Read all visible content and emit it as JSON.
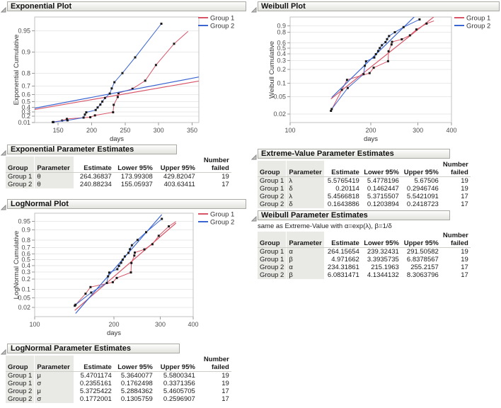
{
  "accent_colors": {
    "group1": "#d85568",
    "group2": "#3b65d0",
    "marker": "#1a1a1a"
  },
  "sections": {
    "exponential_plot": {
      "title": "Exponential Plot"
    },
    "exponential_estimates": {
      "title": "Exponential Parameter Estimates"
    },
    "lognormal_plot": {
      "title": "LogNormal Plot"
    },
    "lognormal_estimates": {
      "title": "LogNormal Parameter Estimates"
    },
    "weibull_plot": {
      "title": "Weibull Plot"
    },
    "extreme_value_estimates": {
      "title": "Extreme-Value Parameter Estimates"
    },
    "weibull_estimates": {
      "title": "Weibull Parameter Estimates",
      "note": "same as Extreme-Value with α=exp(λ), β=1/δ"
    }
  },
  "chart_data": [
    {
      "id": "exponential",
      "type": "line",
      "title": "Exponential Plot",
      "xlabel": "days",
      "ylabel": "Exponential Cumulative",
      "xscale": "linear",
      "xlim": [
        115,
        360
      ],
      "xticks": [
        150,
        200,
        250,
        300,
        350
      ],
      "yscale": "neg-log-survival",
      "yticks": [
        0.01,
        0.2,
        0.3,
        0.4,
        0.5,
        0.6,
        0.7,
        0.8,
        0.9,
        0.95
      ],
      "grid": "horizontal",
      "legend_position": "top-right",
      "legend": [
        "Group 1",
        "Group 2"
      ],
      "series": [
        {
          "name": "Group 1",
          "color": "#d85568",
          "points": [
            [
              142,
              0.0238
            ],
            [
              156,
              0.0714
            ],
            [
              163,
              0.119
            ],
            [
              198,
              0.1667
            ],
            [
              205,
              0.2158
            ],
            [
              232,
              0.2917
            ],
            [
              233,
              0.4435
            ],
            [
              239,
              0.5699
            ],
            [
              240,
              0.6205
            ],
            [
              261,
              0.6711
            ],
            [
              280,
              0.747
            ],
            [
              296,
              0.8482
            ],
            [
              323,
              0.9241
            ]
          ],
          "tail": [
            344,
            0.9494
          ],
          "fit": {
            "type": "exponential",
            "theta": 264.36837,
            "range": [
              115,
              360
            ]
          }
        },
        {
          "name": "Group 2",
          "color": "#3b65d0",
          "points": [
            [
              143,
              0.0263
            ],
            [
              164,
              0.0789
            ],
            [
              188,
              0.1579
            ],
            [
              190,
              0.2368
            ],
            [
              192,
              0.2895
            ],
            [
              206,
              0.3421
            ],
            [
              209,
              0.3947
            ],
            [
              213,
              0.4474
            ],
            [
              216,
              0.5
            ],
            [
              220,
              0.5559
            ],
            [
              227,
              0.6151
            ],
            [
              230,
              0.6743
            ],
            [
              234,
              0.7336
            ],
            [
              246,
              0.8026
            ],
            [
              265,
              0.8816
            ],
            [
              304,
              0.9605
            ]
          ],
          "fit": {
            "type": "exponential",
            "theta": 240.88234,
            "range": [
              115,
              360
            ]
          }
        }
      ]
    },
    {
      "id": "lognormal",
      "type": "line",
      "title": "LogNormal Plot",
      "xlabel": "days",
      "ylabel": "LogNormal Cumulative",
      "xscale": "log",
      "xlim": [
        100,
        400
      ],
      "xticks": [
        100,
        200,
        300,
        400
      ],
      "yscale": "probit",
      "yticks": [
        0.02,
        0.05,
        0.1,
        0.2,
        0.3,
        0.4,
        0.5,
        0.6,
        0.7,
        0.8,
        0.9,
        0.95
      ],
      "grid": "horizontal",
      "legend_position": "top-right",
      "legend": [
        "Group 1",
        "Group 2"
      ],
      "series": [
        {
          "name": "Group 1",
          "color": "#d85568",
          "points": [
            [
              142,
              0.0238
            ],
            [
              156,
              0.0714
            ],
            [
              163,
              0.119
            ],
            [
              198,
              0.1667
            ],
            [
              205,
              0.2158
            ],
            [
              232,
              0.2917
            ],
            [
              233,
              0.4435
            ],
            [
              239,
              0.5699
            ],
            [
              240,
              0.6205
            ],
            [
              261,
              0.6711
            ],
            [
              280,
              0.747
            ],
            [
              296,
              0.8482
            ],
            [
              323,
              0.9241
            ]
          ],
          "tail": [
            344,
            0.9494
          ],
          "fit": {
            "type": "lognormal",
            "mu": 5.4701174,
            "sigma": 0.2355161,
            "range": [
              142,
              344
            ]
          }
        },
        {
          "name": "Group 2",
          "color": "#3b65d0",
          "points": [
            [
              143,
              0.0263
            ],
            [
              164,
              0.0789
            ],
            [
              188,
              0.1579
            ],
            [
              190,
              0.2368
            ],
            [
              192,
              0.2895
            ],
            [
              206,
              0.3421
            ],
            [
              209,
              0.3947
            ],
            [
              213,
              0.4474
            ],
            [
              216,
              0.5
            ],
            [
              220,
              0.5559
            ],
            [
              227,
              0.6151
            ],
            [
              230,
              0.6743
            ],
            [
              234,
              0.7336
            ],
            [
              246,
              0.8026
            ],
            [
              265,
              0.8816
            ],
            [
              304,
              0.9605
            ]
          ],
          "fit": {
            "type": "lognormal",
            "mu": 5.3725422,
            "sigma": 0.1772001,
            "range": [
              143,
              304
            ]
          }
        }
      ]
    },
    {
      "id": "weibull",
      "type": "line",
      "title": "Weibull Plot",
      "xlabel": "days",
      "ylabel": "Weibull Cumulative",
      "xscale": "log",
      "xlim": [
        100,
        400
      ],
      "xticks": [
        100,
        200,
        300,
        400
      ],
      "yscale": "log-neg-log-survival",
      "yticks": [
        0.02,
        0.05,
        0.1,
        0.2,
        0.3,
        0.4,
        0.5,
        0.6,
        0.8,
        0.9
      ],
      "grid": "horizontal",
      "legend_position": "top-right",
      "legend": [
        "Group 1",
        "Group 2"
      ],
      "series": [
        {
          "name": "Group 1",
          "color": "#d85568",
          "points": [
            [
              142,
              0.0238
            ],
            [
              156,
              0.0714
            ],
            [
              163,
              0.119
            ],
            [
              198,
              0.1667
            ],
            [
              205,
              0.2158
            ],
            [
              232,
              0.2917
            ],
            [
              233,
              0.4435
            ],
            [
              239,
              0.5699
            ],
            [
              240,
              0.6205
            ],
            [
              261,
              0.6711
            ],
            [
              280,
              0.747
            ],
            [
              296,
              0.8482
            ],
            [
              323,
              0.9241
            ]
          ],
          "tail": [
            344,
            0.9494
          ],
          "fit": {
            "type": "weibull",
            "alpha": 264.15654,
            "beta": 4.971662,
            "range": [
              142,
              344
            ]
          }
        },
        {
          "name": "Group 2",
          "color": "#3b65d0",
          "points": [
            [
              143,
              0.0263
            ],
            [
              164,
              0.0789
            ],
            [
              188,
              0.1579
            ],
            [
              190,
              0.2368
            ],
            [
              192,
              0.2895
            ],
            [
              206,
              0.3421
            ],
            [
              209,
              0.3947
            ],
            [
              213,
              0.4474
            ],
            [
              216,
              0.5
            ],
            [
              220,
              0.5559
            ],
            [
              227,
              0.6151
            ],
            [
              230,
              0.6743
            ],
            [
              234,
              0.7336
            ],
            [
              246,
              0.8026
            ],
            [
              265,
              0.8816
            ],
            [
              304,
              0.9605
            ]
          ],
          "fit": {
            "type": "weibull",
            "alpha": 234.31861,
            "beta": 6.0831471,
            "range": [
              143,
              304
            ]
          }
        }
      ]
    }
  ],
  "tables": [
    {
      "id": "exponential-estimates",
      "columns": [
        "Group",
        "Parameter",
        "Estimate",
        "Lower 95%",
        "Upper 95%",
        "Number\nfailed"
      ],
      "rows": [
        [
          "Group 1",
          "θ",
          "264.36837",
          "173.99308",
          "429.82047",
          "19"
        ],
        [
          "Group 2",
          "θ",
          "240.88234",
          "155.05937",
          "403.63411",
          "17"
        ]
      ]
    },
    {
      "id": "lognormal-estimates",
      "columns": [
        "Group",
        "Parameter",
        "Estimate",
        "Lower 95%",
        "Upper 95%",
        "Number\nfailed"
      ],
      "rows": [
        [
          "Group 1",
          "μ",
          "5.4701174",
          "5.3640077",
          "5.5800341",
          "19"
        ],
        [
          "Group 1",
          "σ",
          "0.2355161",
          "0.1762498",
          "0.3371356",
          "19"
        ],
        [
          "Group 2",
          "μ",
          "5.3725422",
          "5.2884362",
          "5.4605705",
          "17"
        ],
        [
          "Group 2",
          "σ",
          "0.1772001",
          "0.1305759",
          "0.2596907",
          "17"
        ]
      ]
    },
    {
      "id": "extreme-value-estimates",
      "columns": [
        "Group",
        "Parameter",
        "Estimate",
        "Lower 95%",
        "Upper 95%",
        "Number\nfailed"
      ],
      "rows": [
        [
          "Group 1",
          "λ",
          "5.5765419",
          "5.4778196",
          "5.67506",
          "19"
        ],
        [
          "Group 1",
          "δ",
          "0.20114",
          "0.1462447",
          "0.2946746",
          "19"
        ],
        [
          "Group 2",
          "λ",
          "5.4566818",
          "5.3715507",
          "5.5421091",
          "17"
        ],
        [
          "Group 2",
          "δ",
          "0.1643886",
          "0.1203894",
          "0.2418723",
          "17"
        ]
      ]
    },
    {
      "id": "weibull-estimates",
      "columns": [
        "Group",
        "Parameter",
        "Estimate",
        "Lower 95%",
        "Upper 95%",
        "Number\nfailed"
      ],
      "rows": [
        [
          "Group 1",
          "α",
          "264.15654",
          "239.32431",
          "291.50582",
          "19"
        ],
        [
          "Group 1",
          "β",
          "4.971662",
          "3.3935735",
          "6.8378567",
          "19"
        ],
        [
          "Group 2",
          "α",
          "234.31861",
          "215.1963",
          "255.2157",
          "17"
        ],
        [
          "Group 2",
          "β",
          "6.0831471",
          "4.1344132",
          "8.3063796",
          "17"
        ]
      ]
    }
  ]
}
